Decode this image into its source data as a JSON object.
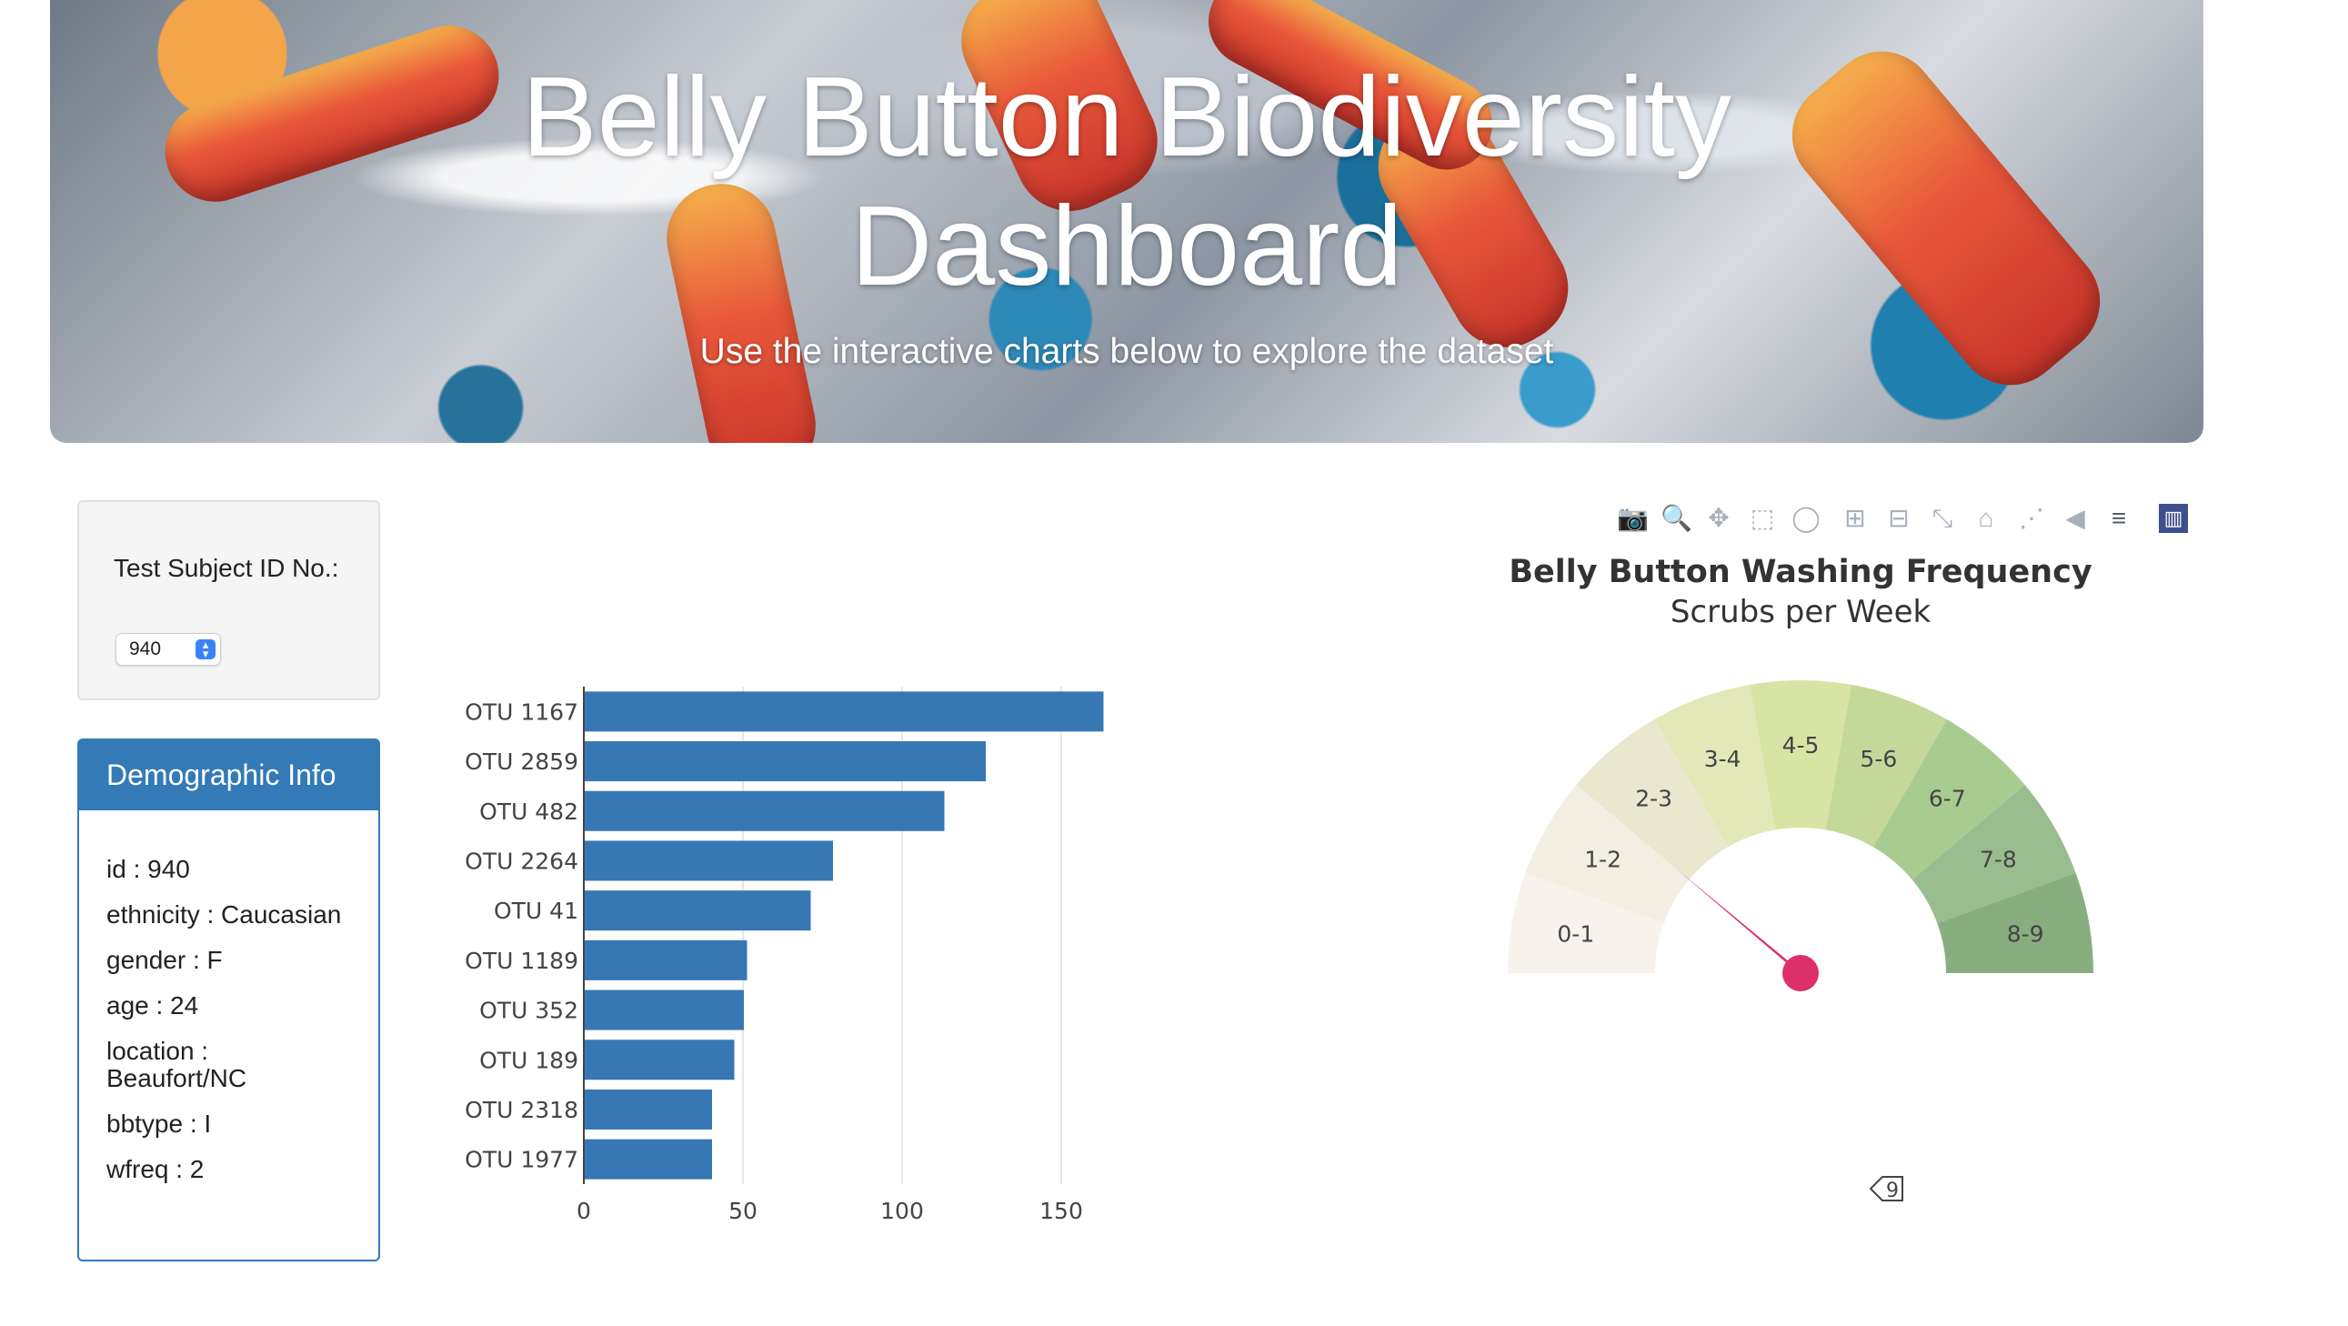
{
  "banner": {
    "title_line1": "Belly Button Biodiversity",
    "title_line2": "Dashboard",
    "subtitle": "Use the interactive charts below to explore the dataset"
  },
  "selector": {
    "label": "Test Subject ID No.:",
    "selected_value": "940"
  },
  "demographics": {
    "heading": "Demographic Info",
    "items": [
      {
        "text": "id : 940"
      },
      {
        "text": "ethnicity : Caucasian"
      },
      {
        "text": "gender : F"
      },
      {
        "text": "age : 24"
      },
      {
        "text": "location : Beaufort/NC"
      },
      {
        "text": "bbtype : I"
      },
      {
        "text": "wfreq : 2"
      }
    ]
  },
  "chart_data": [
    {
      "type": "bar",
      "orientation": "horizontal",
      "categories": [
        "OTU 1167",
        "OTU 2859",
        "OTU 482",
        "OTU 2264",
        "OTU 41",
        "OTU 1189",
        "OTU 352",
        "OTU 189",
        "OTU 2318",
        "OTU 1977"
      ],
      "values": [
        163,
        126,
        113,
        78,
        71,
        51,
        50,
        47,
        40,
        40
      ],
      "xlim": [
        0,
        165
      ],
      "xticks": [
        0,
        50,
        100,
        150
      ],
      "grid": true,
      "color": "#3777b3"
    },
    {
      "type": "gauge",
      "title": "Belly Button Washing Frequency",
      "subtitle": "Scrubs per Week",
      "sectors": [
        "0-1",
        "1-2",
        "2-3",
        "3-4",
        "4-5",
        "5-6",
        "6-7",
        "7-8",
        "8-9"
      ],
      "sector_colors": [
        "#f7f3ec",
        "#f2efe2",
        "#e9e8cf",
        "#e3e8b8",
        "#d8e4a4",
        "#c4d89a",
        "#a8cc90",
        "#99bd8e",
        "#88ae80"
      ],
      "value": 2,
      "range": [
        0,
        9
      ],
      "needle_color": "#db2f6a",
      "badge_text": "9"
    }
  ],
  "modebar": {
    "icons": [
      "camera-icon",
      "zoom-icon",
      "pan-icon",
      "box-select-icon",
      "lasso-icon",
      "zoom-in-icon",
      "zoom-out-icon",
      "autoscale-icon",
      "reset-axes-icon",
      "spike-lines-icon",
      "hover-closest-icon",
      "hover-compare-icon",
      "plotly-logo-icon"
    ]
  }
}
